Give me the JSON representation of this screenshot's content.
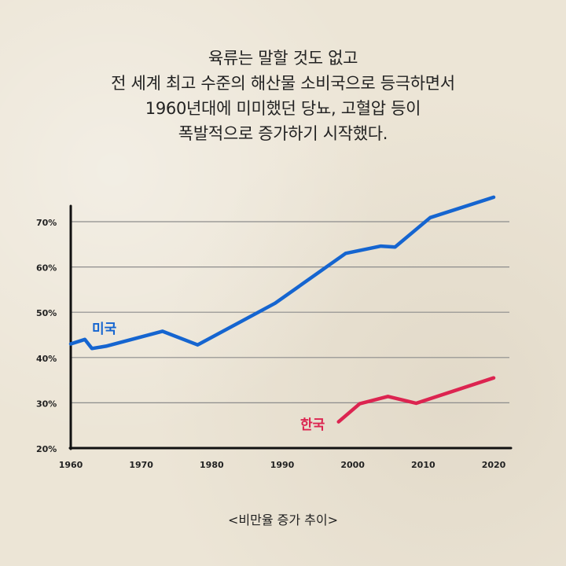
{
  "headline": {
    "lines": [
      "육류는 말할 것도 없고",
      "전 세계 최고 수준의 해산물 소비국으로 등극하면서",
      "1960년대에 미미했던 당뇨, 고혈압 등이",
      "폭발적으로 증가하기 시작했다."
    ]
  },
  "caption": "<비만율 증가 추이>",
  "colors": {
    "background": "#ece5d6",
    "usa": "#1565d0",
    "korea": "#dc2450",
    "grid": "#8c8c8c",
    "axis": "#111111"
  },
  "chart_data": {
    "type": "line",
    "title": "",
    "xlabel": "",
    "ylabel": "",
    "xlim": [
      1960,
      2020
    ],
    "ylim": [
      20,
      70
    ],
    "x_ticks": [
      1960,
      1970,
      1980,
      1990,
      2000,
      2010,
      2020
    ],
    "y_ticks": [
      20,
      30,
      40,
      50,
      60,
      70
    ],
    "y_tick_labels": [
      "20%",
      "30%",
      "40%",
      "50%",
      "60%",
      "70%"
    ],
    "grid": "horizontal",
    "series": [
      {
        "name": "미국",
        "color": "#1565d0",
        "points": [
          [
            1960,
            43.0
          ],
          [
            1962,
            44.0
          ],
          [
            1963,
            42.0
          ],
          [
            1965,
            42.5
          ],
          [
            1973,
            45.8
          ],
          [
            1978,
            42.8
          ],
          [
            1989,
            52.0
          ],
          [
            1999,
            63.0
          ],
          [
            2004,
            64.6
          ],
          [
            2006,
            64.4
          ],
          [
            2011,
            70.9
          ],
          [
            2020,
            75.4
          ]
        ]
      },
      {
        "name": "한국",
        "color": "#dc2450",
        "points": [
          [
            1998,
            25.8
          ],
          [
            2001,
            29.8
          ],
          [
            2005,
            31.4
          ],
          [
            2009,
            29.9
          ],
          [
            2020,
            35.5
          ]
        ]
      }
    ]
  }
}
